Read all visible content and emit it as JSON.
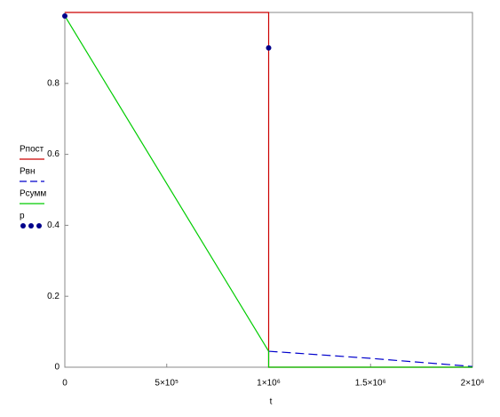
{
  "chart_data": {
    "type": "line",
    "x_label": "t",
    "xlim": [
      0,
      2000000
    ],
    "ylim": [
      0,
      1
    ],
    "xticks": [
      0,
      {
        "value": 500000,
        "label": "5×10⁵"
      },
      {
        "value": 1000000,
        "label": "1×10⁶"
      },
      {
        "value": 1500000,
        "label": "1.5×10⁶"
      },
      {
        "value": 2000000,
        "label": "2×10⁶"
      }
    ],
    "yticks": [
      0,
      0.2,
      0.4,
      0.6,
      0.8
    ],
    "series": [
      {
        "name": "Рпост",
        "color": "#cc0000",
        "line_style": "solid",
        "x": [
          0,
          1000000,
          1000000,
          2000000
        ],
        "values": [
          1,
          1,
          0,
          0
        ]
      },
      {
        "name": "Рвн",
        "color": "#0000cc",
        "line_style": "dashed",
        "x": [
          1000000,
          1500000,
          2000000
        ],
        "values": [
          0.045,
          0.025,
          0.002
        ]
      },
      {
        "name": "Рсумм",
        "color": "#00cc00",
        "line_style": "solid",
        "x": [
          0,
          1000000,
          1000000,
          2000000
        ],
        "values": [
          0.99,
          0.045,
          0,
          0
        ]
      },
      {
        "name": "р",
        "color": "#00008b",
        "line_style": "none",
        "marker": "circle",
        "x": [
          0,
          1000000
        ],
        "values": [
          0.99,
          0.9
        ]
      }
    ]
  }
}
